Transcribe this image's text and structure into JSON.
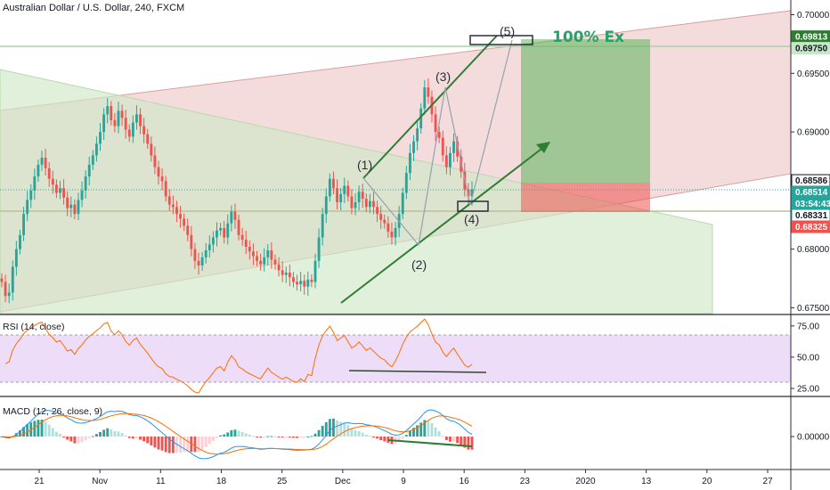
{
  "header": {
    "title": "Australian Dollar / U.S. Dollar, 240, FXCM"
  },
  "chart_data": [
    {
      "type": "candlestick",
      "pane": "price",
      "symbol": "Australian Dollar / U.S. Dollar",
      "timeframe": "240",
      "source": "FXCM",
      "ylim": [
        0.6745,
        0.7008
      ],
      "y_ticks": [
        "0.70000",
        "0.69500",
        "0.69000",
        "0.68500",
        "0.68000",
        "0.67500"
      ],
      "y_tick_values": [
        0.7,
        0.695,
        0.69,
        0.685,
        0.68,
        0.675
      ],
      "price_tags": [
        {
          "label": "0.69813",
          "value": 0.69813,
          "color": "#2e7d32",
          "text_color": "#ffffff"
        },
        {
          "label": "0.69750",
          "value": 0.6975,
          "color": "#c8e6c9",
          "text_color": "#131722"
        },
        {
          "label": "0.68586",
          "value": 0.68586,
          "color": "#ffffff",
          "text_color": "#131722",
          "border": "#131722"
        },
        {
          "label": "0.68514",
          "value": 0.68514,
          "color": "#26a69a",
          "text_color": "#ffffff"
        },
        {
          "label": "03:54:43",
          "value": 0.6842,
          "color": "#26a69a",
          "text_color": "#ffffff"
        },
        {
          "label": "0.68331",
          "value": 0.68331,
          "color": "#ffffff",
          "text_color": "#131722",
          "border": "#26a69a"
        },
        {
          "label": "0.68325",
          "value": 0.68325,
          "color": "#ef5350",
          "text_color": "#ffffff"
        }
      ],
      "close_series": [
        0.6772,
        0.676,
        0.6763,
        0.6785,
        0.68,
        0.6812,
        0.683,
        0.6842,
        0.685,
        0.6862,
        0.6872,
        0.6878,
        0.6869,
        0.686,
        0.6855,
        0.6848,
        0.6852,
        0.6844,
        0.6835,
        0.6838,
        0.683,
        0.6842,
        0.685,
        0.6862,
        0.6872,
        0.688,
        0.689,
        0.69,
        0.6915,
        0.6922,
        0.691,
        0.6905,
        0.6918,
        0.6912,
        0.6902,
        0.6896,
        0.6908,
        0.6915,
        0.6905,
        0.6898,
        0.689,
        0.688,
        0.687,
        0.6862,
        0.6858,
        0.6845,
        0.6838,
        0.6836,
        0.683,
        0.6826,
        0.682,
        0.6812,
        0.68,
        0.679,
        0.6786,
        0.6793,
        0.6799,
        0.6804,
        0.681,
        0.6816,
        0.6818,
        0.681,
        0.6822,
        0.6832,
        0.6825,
        0.6812,
        0.6808,
        0.6802,
        0.6798,
        0.6794,
        0.679,
        0.6787,
        0.6793,
        0.6799,
        0.6791,
        0.6787,
        0.6782,
        0.6778,
        0.678,
        0.6776,
        0.6772,
        0.677,
        0.6773,
        0.6768,
        0.6774,
        0.6772,
        0.679,
        0.681,
        0.683,
        0.6845,
        0.686,
        0.6852,
        0.684,
        0.6847,
        0.6854,
        0.6845,
        0.6835,
        0.684,
        0.6849,
        0.6843,
        0.6836,
        0.6841,
        0.6836,
        0.683,
        0.6825,
        0.6822,
        0.6815,
        0.681,
        0.6818,
        0.683,
        0.6848,
        0.6865,
        0.6882,
        0.6892,
        0.6903,
        0.692,
        0.6938,
        0.693,
        0.6915,
        0.69,
        0.6895,
        0.688,
        0.687,
        0.6882,
        0.6892,
        0.6879,
        0.6866,
        0.6851,
        0.6845,
        0.6851
      ],
      "annotations": [
        {
          "type": "text",
          "label": "(1)"
        },
        {
          "type": "text",
          "label": "(2)"
        },
        {
          "type": "text",
          "label": "(3)"
        },
        {
          "type": "text",
          "label": "(4)"
        },
        {
          "type": "text",
          "label": "(5)"
        },
        {
          "type": "text",
          "label": "100% Ex"
        }
      ],
      "colors": {
        "up": "#26a69a",
        "down": "#ef5350",
        "annotation_green": "#2e7d32",
        "target_text": "#26a269"
      }
    },
    {
      "type": "line",
      "pane": "rsi",
      "title": "RSI (14, close)",
      "ylim": [
        20,
        82
      ],
      "y_ticks": [
        "75.00",
        "50.00",
        "25.00"
      ],
      "y_tick_values": [
        75,
        50,
        25
      ],
      "band": [
        30,
        70
      ],
      "color": "#ff6d00",
      "band_color": "#e7d2f7"
    },
    {
      "type": "line",
      "pane": "macd",
      "title": "MACD (12, 26, close, 9)",
      "y_ticks": [
        "0.00000"
      ],
      "y_tick_values": [
        0
      ],
      "series": [
        {
          "name": "MACD",
          "color": "#2196f3"
        },
        {
          "name": "Signal",
          "color": "#ff6d00"
        }
      ],
      "histogram_colors": [
        "#26a69a",
        "#b2dfdb",
        "#ef5350",
        "#ffcdd2"
      ]
    }
  ],
  "x_axis": {
    "labels": [
      "21",
      "Nov",
      "11",
      "18",
      "25",
      "Dec",
      "9",
      "16",
      "23",
      "2020",
      "13",
      "20",
      "27"
    ]
  }
}
